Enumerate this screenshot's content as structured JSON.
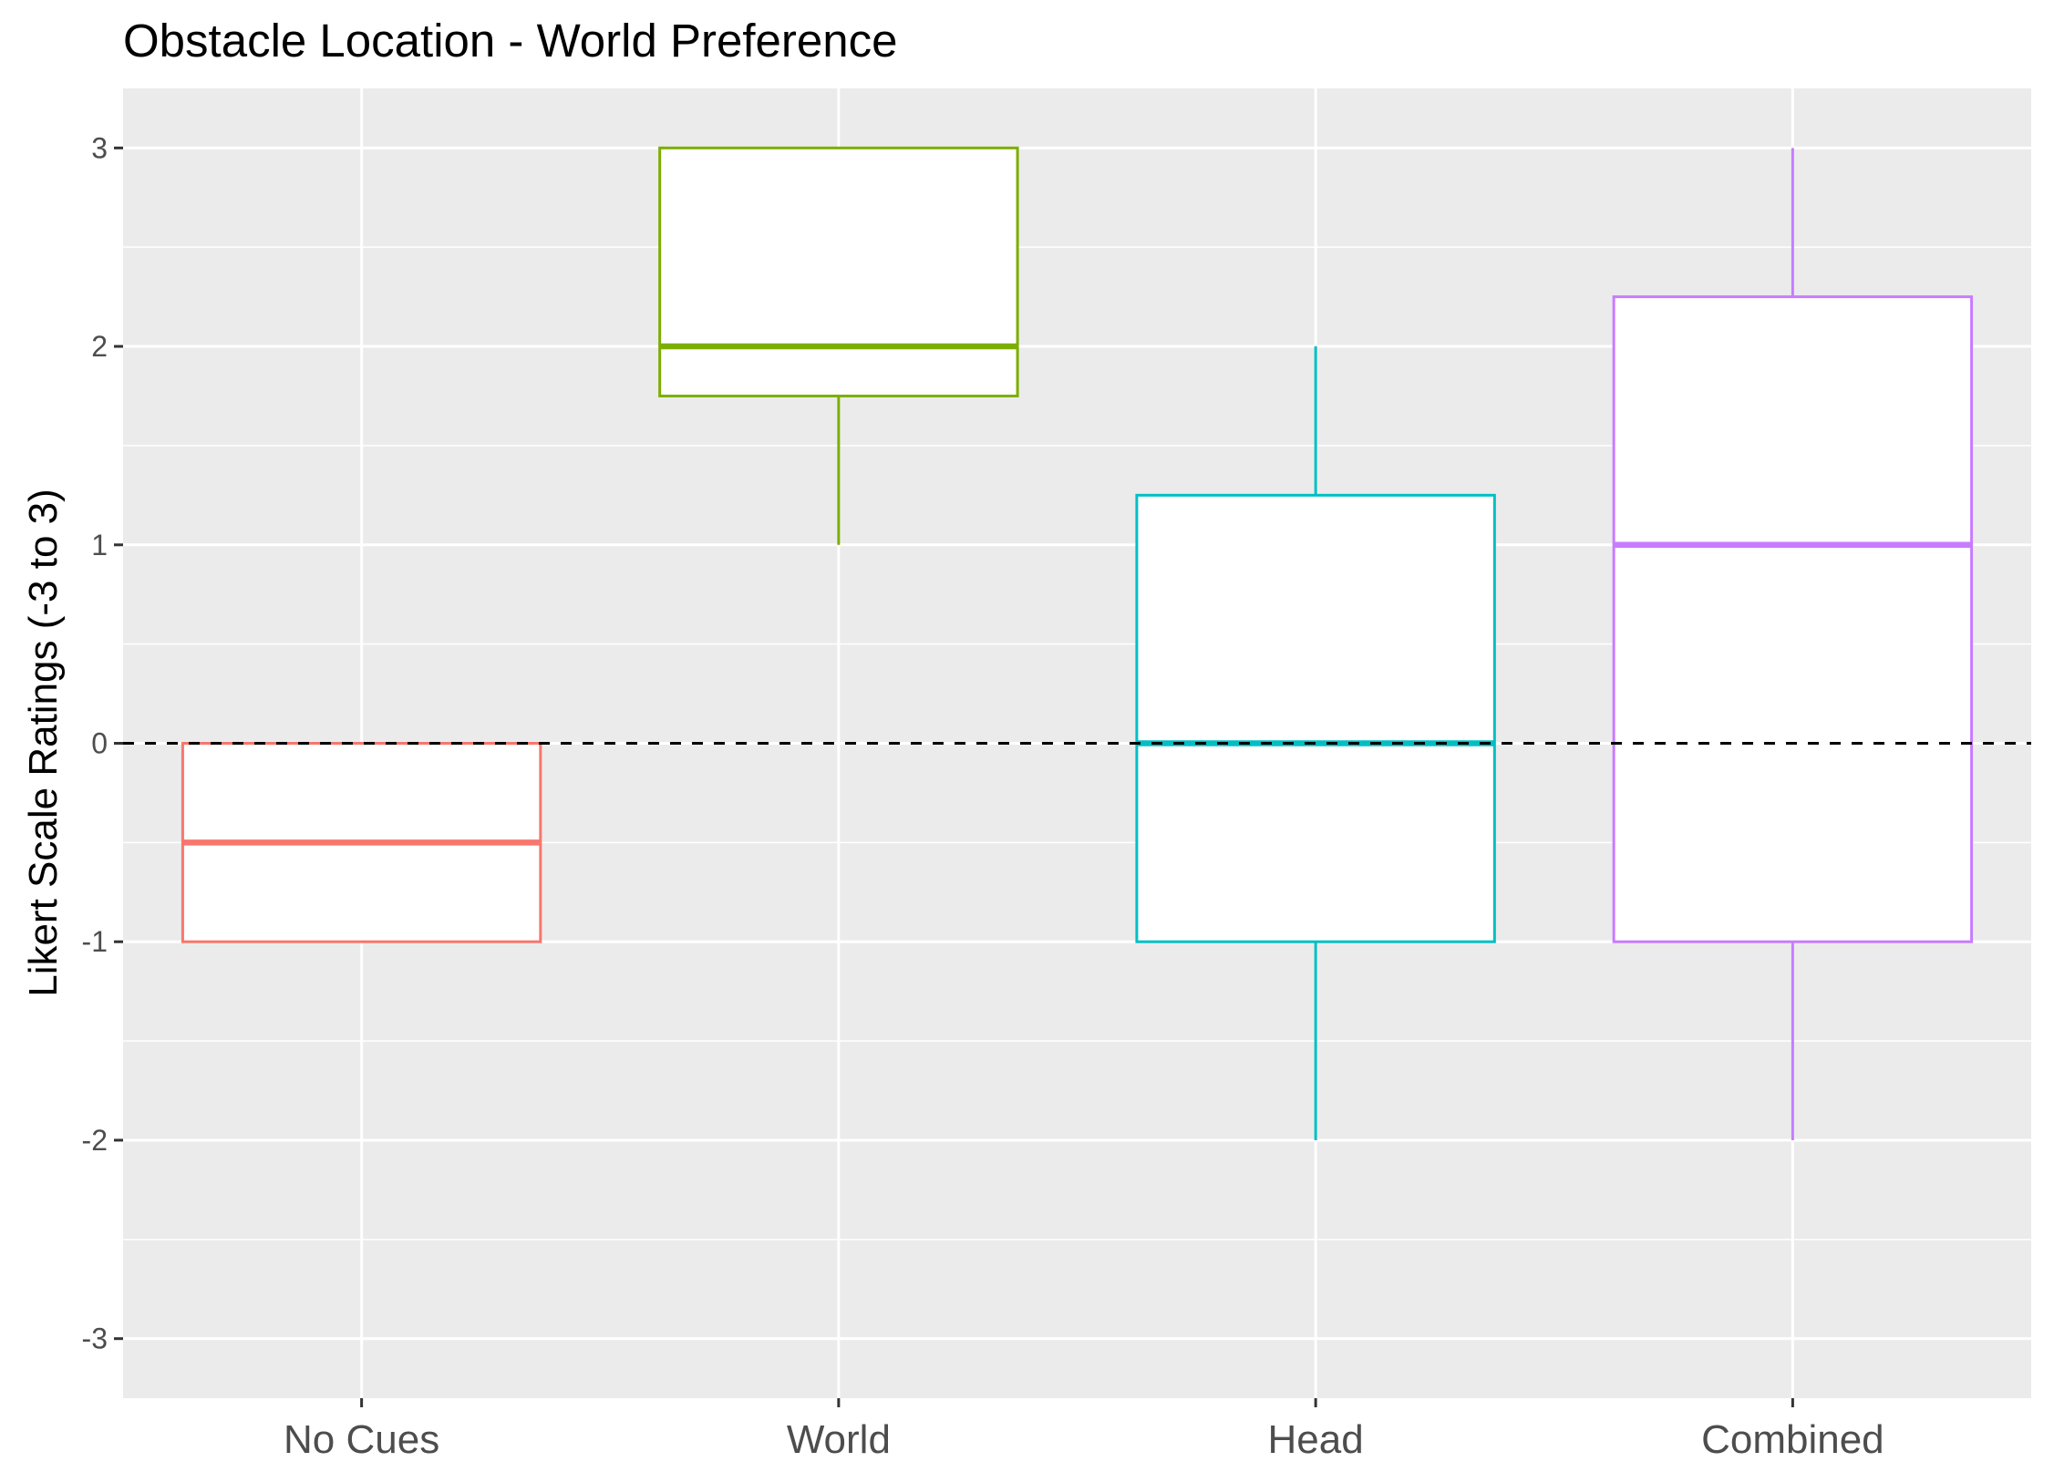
{
  "chart_data": {
    "type": "boxplot",
    "title": "Obstacle Location - World Preference",
    "xlabel": "",
    "ylabel": "Likert Scale Ratings (-3 to 3)",
    "ylim": [
      -3.3,
      3.3
    ],
    "yticks": [
      -3,
      -2,
      -1,
      0,
      1,
      2,
      3
    ],
    "ytick_labels": [
      "-3",
      "-2",
      "-1",
      "0",
      "1",
      "2",
      "3"
    ],
    "reference_line": {
      "y": 0,
      "style": "dashed",
      "color": "#000000"
    },
    "grid": true,
    "legend": "none",
    "categories": [
      "No Cues",
      "World",
      "Head",
      "Combined"
    ],
    "boxes": [
      {
        "category": "No Cues",
        "min": -1,
        "q1": -1,
        "median": -0.5,
        "q3": 0,
        "max": 0,
        "color": "#F8766D"
      },
      {
        "category": "World",
        "min": 1,
        "q1": 1.75,
        "median": 2,
        "q3": 3,
        "max": 3,
        "color": "#7CAE00"
      },
      {
        "category": "Head",
        "min": -2,
        "q1": -1,
        "median": 0,
        "q3": 1.25,
        "max": 2,
        "color": "#00BFC4"
      },
      {
        "category": "Combined",
        "min": -2,
        "q1": -1,
        "median": 1,
        "q3": 2.25,
        "max": 3,
        "color": "#C77CFF"
      }
    ]
  },
  "colors": {
    "panel_background": "#EBEBEB",
    "grid": "#FFFFFF",
    "box_fill": "#FFFFFF"
  }
}
